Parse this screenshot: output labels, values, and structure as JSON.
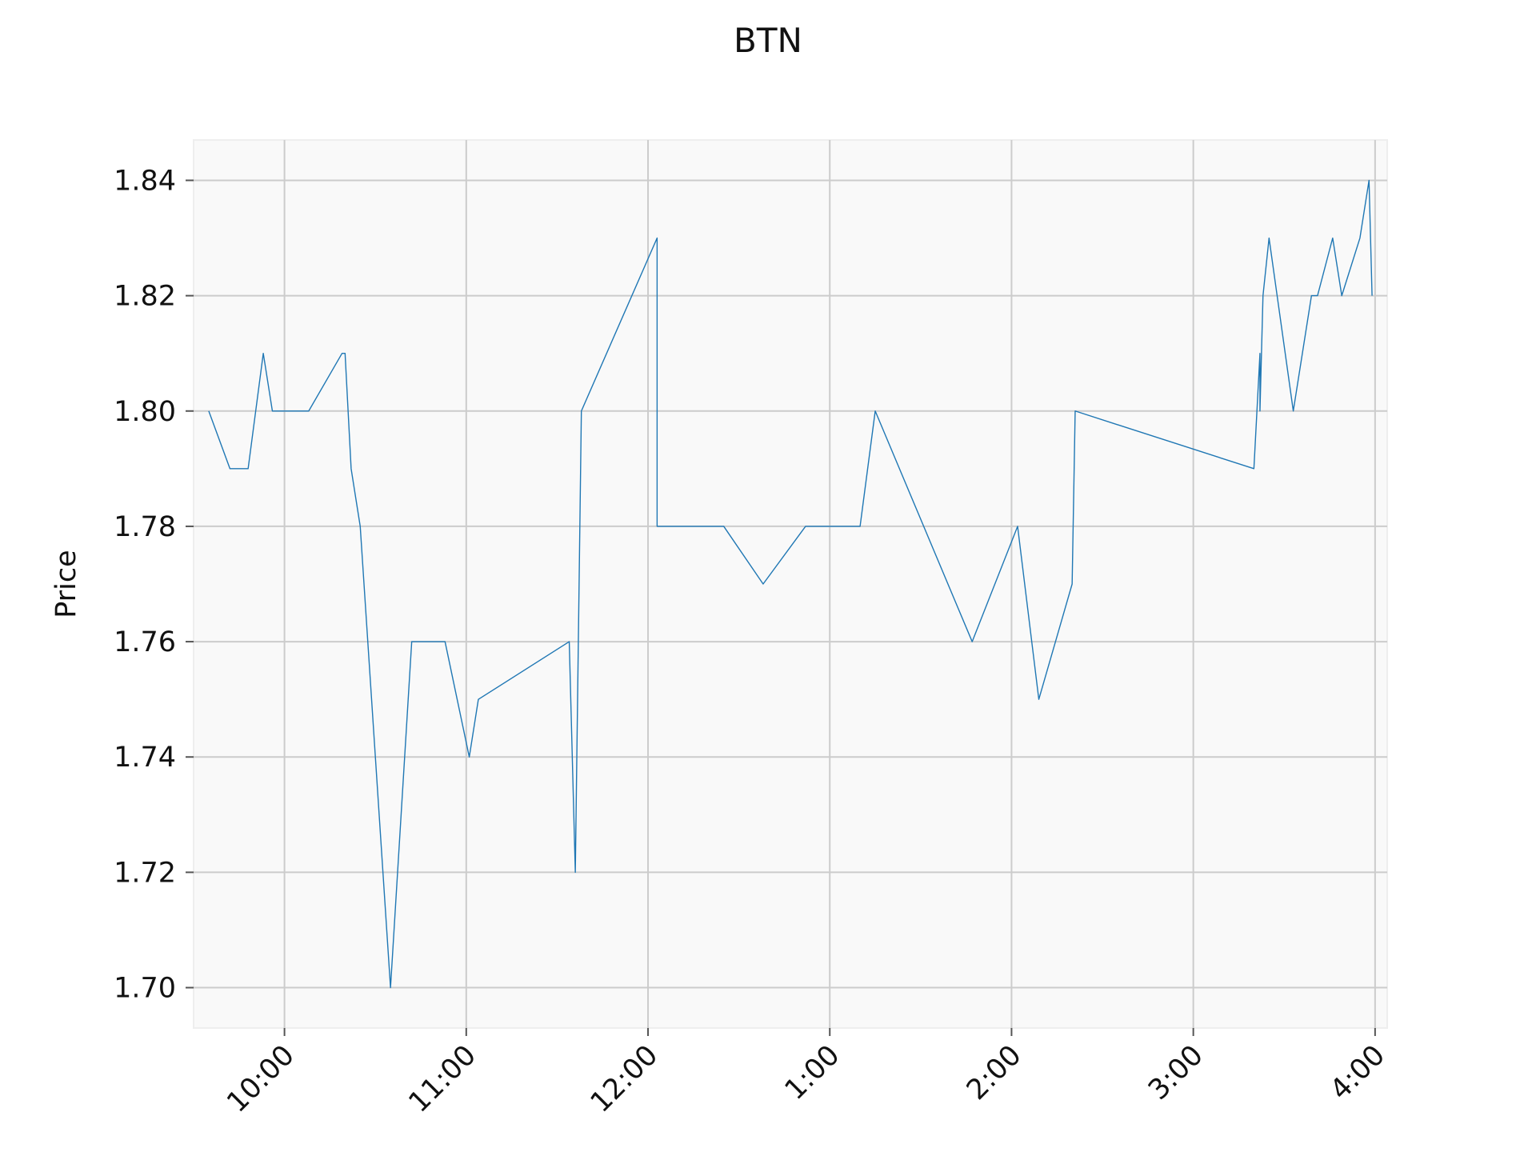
{
  "chart_data": {
    "type": "line",
    "title": "BTN",
    "xlabel": "",
    "ylabel": "Price",
    "ylim": [
      1.693,
      1.847
    ],
    "xlim": [
      "09:30",
      "16:00"
    ],
    "yticks": [
      1.7,
      1.72,
      1.74,
      1.76,
      1.78,
      1.8,
      1.82,
      1.84
    ],
    "ytick_labels": [
      "1.70",
      "1.72",
      "1.74",
      "1.76",
      "1.78",
      "1.80",
      "1.82",
      "1.84"
    ],
    "xticks": [
      "10:00",
      "11:00",
      "12:00",
      "13:00",
      "14:00",
      "15:00",
      "16:00"
    ],
    "xtick_labels": [
      "10:00",
      "11:00",
      "12:00",
      "1:00",
      "2:00",
      "3:00",
      "4:00"
    ],
    "grid": true,
    "colors": {
      "line": "#1f77b4",
      "plot_background": "#f9f9f9",
      "grid": "#cccccc",
      "frame": "#eeeeee"
    },
    "series": [
      {
        "x": [
          "09:35",
          "09:42",
          "09:48",
          "09:53",
          "09:56",
          "10:08",
          "10:19",
          "10:20",
          "10:22",
          "10:25",
          "10:35",
          "10:42",
          "10:53",
          "11:01",
          "11:04",
          "11:34",
          "11:36",
          "11:38",
          "12:03",
          "12:03",
          "12:25",
          "12:38",
          "12:52",
          "13:10",
          "13:15",
          "13:47",
          "14:02",
          "14:09",
          "14:20",
          "14:21",
          "15:20",
          "15:21",
          "15:22",
          "15:22",
          "15:23",
          "15:25",
          "15:33",
          "15:39",
          "15:41",
          "15:46",
          "15:49",
          "15:55",
          "15:58",
          "15:59"
        ],
        "y": [
          1.8,
          1.79,
          1.79,
          1.81,
          1.8,
          1.8,
          1.81,
          1.81,
          1.79,
          1.78,
          1.7,
          1.76,
          1.76,
          1.74,
          1.75,
          1.76,
          1.72,
          1.8,
          1.83,
          1.78,
          1.78,
          1.77,
          1.78,
          1.78,
          1.8,
          1.76,
          1.78,
          1.75,
          1.77,
          1.8,
          1.79,
          1.8,
          1.81,
          1.8,
          1.82,
          1.83,
          1.8,
          1.82,
          1.82,
          1.83,
          1.82,
          1.83,
          1.84,
          1.82
        ]
      }
    ]
  }
}
